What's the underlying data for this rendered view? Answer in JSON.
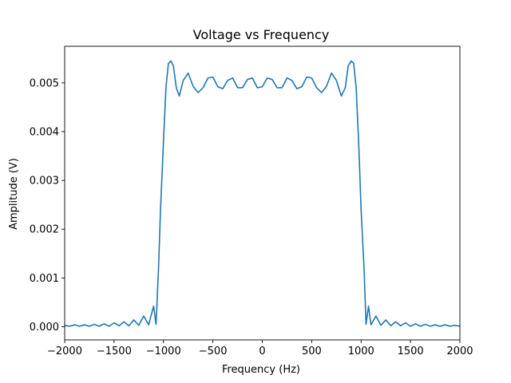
{
  "chart_data": {
    "type": "line",
    "title": "Voltage vs Frequency",
    "xlabel": "Frequency (Hz)",
    "ylabel": "Amplitude (V)",
    "xlim": [
      -2000,
      2000
    ],
    "ylim": [
      -0.00027,
      0.00575
    ],
    "xticks": [
      -2000,
      -1500,
      -1000,
      -500,
      0,
      500,
      1000,
      1500,
      2000
    ],
    "xtick_labels": [
      "−2000",
      "−1500",
      "−1000",
      "−500",
      "0",
      "500",
      "1000",
      "1500",
      "2000"
    ],
    "yticks": [
      0,
      0.001,
      0.002,
      0.003,
      0.004,
      0.005
    ],
    "ytick_labels": [
      "0.000",
      "0.001",
      "0.002",
      "0.003",
      "0.004",
      "0.005"
    ],
    "grid": false,
    "series": [
      {
        "color": "#1f77b4",
        "x": [
          -2000,
          -1950,
          -1900,
          -1850,
          -1800,
          -1750,
          -1700,
          -1650,
          -1600,
          -1550,
          -1500,
          -1450,
          -1400,
          -1350,
          -1300,
          -1250,
          -1200,
          -1150,
          -1100,
          -1075,
          -1050,
          -1030,
          -1000,
          -975,
          -950,
          -925,
          -900,
          -870,
          -840,
          -800,
          -750,
          -700,
          -650,
          -600,
          -550,
          -500,
          -450,
          -400,
          -350,
          -300,
          -250,
          -200,
          -150,
          -100,
          -50,
          0,
          50,
          100,
          150,
          200,
          250,
          300,
          350,
          400,
          450,
          500,
          550,
          600,
          650,
          700,
          750,
          800,
          840,
          870,
          900,
          925,
          950,
          975,
          1000,
          1030,
          1050,
          1075,
          1100,
          1150,
          1200,
          1250,
          1300,
          1350,
          1400,
          1450,
          1500,
          1550,
          1600,
          1650,
          1700,
          1750,
          1800,
          1850,
          1900,
          1950,
          2000
        ],
        "y": [
          3e-05,
          1e-05,
          4e-05,
          1e-05,
          4e-05,
          1e-05,
          5e-05,
          1e-05,
          6e-05,
          1e-05,
          8e-05,
          2e-05,
          0.0001,
          2e-05,
          0.00014,
          3e-05,
          0.00022,
          4e-05,
          0.00042,
          5e-05,
          0.0012,
          0.0024,
          0.0038,
          0.0049,
          0.0054,
          0.00545,
          0.00535,
          0.0049,
          0.00473,
          0.00505,
          0.0052,
          0.00493,
          0.0048,
          0.0049,
          0.0051,
          0.00512,
          0.00492,
          0.00488,
          0.00505,
          0.0051,
          0.0049,
          0.0049,
          0.00507,
          0.0051,
          0.0049,
          0.00492,
          0.0051,
          0.00507,
          0.0049,
          0.0049,
          0.0051,
          0.00505,
          0.00488,
          0.00492,
          0.00512,
          0.0051,
          0.0049,
          0.0048,
          0.00493,
          0.0052,
          0.00505,
          0.00473,
          0.0049,
          0.00535,
          0.00545,
          0.0054,
          0.0049,
          0.0038,
          0.0024,
          0.0012,
          5e-05,
          0.00042,
          4e-05,
          0.00022,
          3e-05,
          0.00014,
          2e-05,
          0.0001,
          2e-05,
          8e-05,
          1e-05,
          6e-05,
          1e-05,
          5e-05,
          1e-05,
          4e-05,
          1e-05,
          4e-05,
          1e-05,
          3e-05,
          1e-05
        ]
      }
    ]
  }
}
